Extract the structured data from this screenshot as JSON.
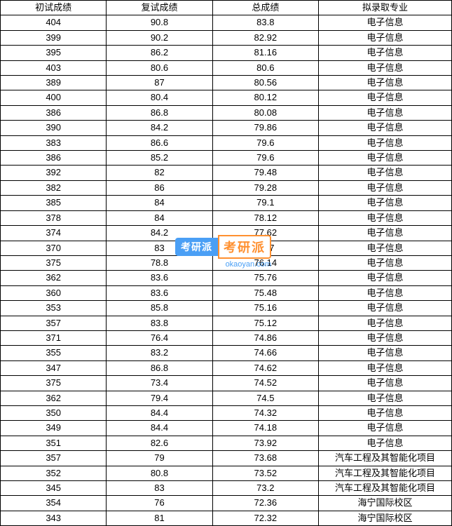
{
  "table": {
    "columns": [
      "初试成绩",
      "复试成绩",
      "总成绩",
      "拟录取专业"
    ],
    "rows": [
      [
        "404",
        "90.8",
        "83.8",
        "电子信息"
      ],
      [
        "399",
        "90.2",
        "82.92",
        "电子信息"
      ],
      [
        "395",
        "86.2",
        "81.16",
        "电子信息"
      ],
      [
        "403",
        "80.6",
        "80.6",
        "电子信息"
      ],
      [
        "389",
        "87",
        "80.56",
        "电子信息"
      ],
      [
        "400",
        "80.4",
        "80.12",
        "电子信息"
      ],
      [
        "386",
        "86.8",
        "80.08",
        "电子信息"
      ],
      [
        "390",
        "84.2",
        "79.86",
        "电子信息"
      ],
      [
        "383",
        "86.6",
        "79.6",
        "电子信息"
      ],
      [
        "386",
        "85.2",
        "79.6",
        "电子信息"
      ],
      [
        "392",
        "82",
        "79.48",
        "电子信息"
      ],
      [
        "382",
        "86",
        "79.28",
        "电子信息"
      ],
      [
        "385",
        "84",
        "79.1",
        "电子信息"
      ],
      [
        "378",
        "84",
        "78.12",
        "电子信息"
      ],
      [
        "374",
        "84.2",
        "77.62",
        "电子信息"
      ],
      [
        "370",
        "83",
        "76.7",
        "电子信息"
      ],
      [
        "375",
        "78.8",
        "76.14",
        "电子信息"
      ],
      [
        "362",
        "83.6",
        "75.76",
        "电子信息"
      ],
      [
        "360",
        "83.6",
        "75.48",
        "电子信息"
      ],
      [
        "353",
        "85.8",
        "75.16",
        "电子信息"
      ],
      [
        "357",
        "83.8",
        "75.12",
        "电子信息"
      ],
      [
        "371",
        "76.4",
        "74.86",
        "电子信息"
      ],
      [
        "355",
        "83.2",
        "74.66",
        "电子信息"
      ],
      [
        "347",
        "86.8",
        "74.62",
        "电子信息"
      ],
      [
        "375",
        "73.4",
        "74.52",
        "电子信息"
      ],
      [
        "362",
        "79.4",
        "74.5",
        "电子信息"
      ],
      [
        "350",
        "84.4",
        "74.32",
        "电子信息"
      ],
      [
        "349",
        "84.4",
        "74.18",
        "电子信息"
      ],
      [
        "351",
        "82.6",
        "73.92",
        "电子信息"
      ],
      [
        "357",
        "79",
        "73.68",
        "汽车工程及其智能化项目"
      ],
      [
        "352",
        "80.8",
        "73.52",
        "汽车工程及其智能化项目"
      ],
      [
        "345",
        "83",
        "73.2",
        "汽车工程及其智能化项目"
      ],
      [
        "354",
        "76",
        "72.36",
        "海宁国际校区"
      ],
      [
        "343",
        "81",
        "72.32",
        "海宁国际校区"
      ]
    ],
    "border_color": "#000000",
    "background_color": "#ffffff",
    "font_size": 13,
    "row_height": 20.4,
    "column_widths_pct": [
      23.5,
      23.5,
      23.5,
      29.5
    ]
  },
  "watermark": {
    "badge_left": "考研派",
    "badge_right": "考研派",
    "url": "okaoyan.com",
    "blue": "#4a9ff5",
    "orange": "#ff9030"
  }
}
